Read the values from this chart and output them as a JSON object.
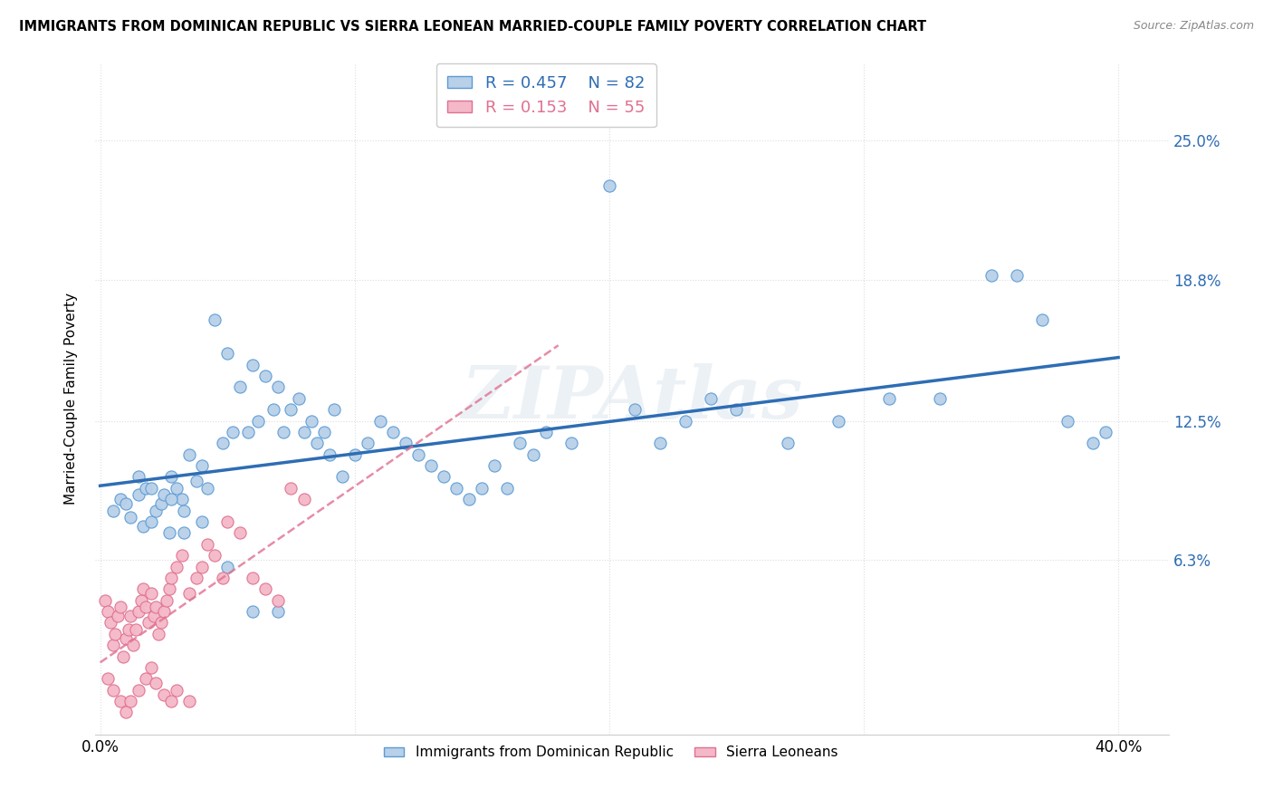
{
  "title": "IMMIGRANTS FROM DOMINICAN REPUBLIC VS SIERRA LEONEAN MARRIED-COUPLE FAMILY POVERTY CORRELATION CHART",
  "source": "Source: ZipAtlas.com",
  "ylabel": "Married-Couple Family Poverty",
  "ytick_vals": [
    0.063,
    0.125,
    0.188,
    0.25
  ],
  "ytick_labels": [
    "6.3%",
    "12.5%",
    "18.8%",
    "25.0%"
  ],
  "xtick_positions": [
    0.0,
    0.1,
    0.2,
    0.3,
    0.4
  ],
  "xlim": [
    -0.002,
    0.42
  ],
  "ylim": [
    -0.015,
    0.285
  ],
  "legend1_R": "0.457",
  "legend1_N": "82",
  "legend2_R": "0.153",
  "legend2_N": "55",
  "blue_fill": "#b8d0e8",
  "blue_edge": "#5b9bd5",
  "blue_line": "#2e6db4",
  "pink_fill": "#f4b8c8",
  "pink_edge": "#e07090",
  "pink_line": "#e07090",
  "watermark": "ZIPAtlas",
  "blue_x": [
    0.005,
    0.008,
    0.01,
    0.012,
    0.015,
    0.017,
    0.018,
    0.02,
    0.022,
    0.024,
    0.025,
    0.027,
    0.028,
    0.03,
    0.032,
    0.033,
    0.035,
    0.038,
    0.04,
    0.042,
    0.045,
    0.048,
    0.05,
    0.052,
    0.055,
    0.058,
    0.06,
    0.062,
    0.065,
    0.068,
    0.07,
    0.072,
    0.075,
    0.078,
    0.08,
    0.083,
    0.085,
    0.088,
    0.09,
    0.092,
    0.095,
    0.1,
    0.105,
    0.11,
    0.115,
    0.12,
    0.125,
    0.13,
    0.135,
    0.14,
    0.145,
    0.15,
    0.155,
    0.16,
    0.165,
    0.17,
    0.175,
    0.185,
    0.2,
    0.21,
    0.22,
    0.23,
    0.24,
    0.25,
    0.27,
    0.29,
    0.31,
    0.33,
    0.35,
    0.36,
    0.37,
    0.38,
    0.39,
    0.395,
    0.015,
    0.02,
    0.028,
    0.033,
    0.04,
    0.05,
    0.06,
    0.07
  ],
  "blue_y": [
    0.085,
    0.09,
    0.088,
    0.082,
    0.092,
    0.078,
    0.095,
    0.08,
    0.085,
    0.088,
    0.092,
    0.075,
    0.1,
    0.095,
    0.09,
    0.085,
    0.11,
    0.098,
    0.105,
    0.095,
    0.17,
    0.115,
    0.155,
    0.12,
    0.14,
    0.12,
    0.15,
    0.125,
    0.145,
    0.13,
    0.14,
    0.12,
    0.13,
    0.135,
    0.12,
    0.125,
    0.115,
    0.12,
    0.11,
    0.13,
    0.1,
    0.11,
    0.115,
    0.125,
    0.12,
    0.115,
    0.11,
    0.105,
    0.1,
    0.095,
    0.09,
    0.095,
    0.105,
    0.095,
    0.115,
    0.11,
    0.12,
    0.115,
    0.23,
    0.13,
    0.115,
    0.125,
    0.135,
    0.13,
    0.115,
    0.125,
    0.135,
    0.135,
    0.19,
    0.19,
    0.17,
    0.125,
    0.115,
    0.12,
    0.1,
    0.095,
    0.09,
    0.075,
    0.08,
    0.06,
    0.04,
    0.04
  ],
  "pink_x": [
    0.002,
    0.003,
    0.004,
    0.005,
    0.006,
    0.007,
    0.008,
    0.009,
    0.01,
    0.011,
    0.012,
    0.013,
    0.014,
    0.015,
    0.016,
    0.017,
    0.018,
    0.019,
    0.02,
    0.021,
    0.022,
    0.023,
    0.024,
    0.025,
    0.026,
    0.027,
    0.028,
    0.03,
    0.032,
    0.035,
    0.038,
    0.04,
    0.042,
    0.045,
    0.048,
    0.05,
    0.055,
    0.06,
    0.065,
    0.07,
    0.075,
    0.08,
    0.003,
    0.005,
    0.008,
    0.01,
    0.012,
    0.015,
    0.018,
    0.02,
    0.022,
    0.025,
    0.028,
    0.03,
    0.035
  ],
  "pink_y": [
    0.045,
    0.04,
    0.035,
    0.025,
    0.03,
    0.038,
    0.042,
    0.02,
    0.028,
    0.032,
    0.038,
    0.025,
    0.032,
    0.04,
    0.045,
    0.05,
    0.042,
    0.035,
    0.048,
    0.038,
    0.042,
    0.03,
    0.035,
    0.04,
    0.045,
    0.05,
    0.055,
    0.06,
    0.065,
    0.048,
    0.055,
    0.06,
    0.07,
    0.065,
    0.055,
    0.08,
    0.075,
    0.055,
    0.05,
    0.045,
    0.095,
    0.09,
    0.01,
    0.005,
    0.0,
    -0.005,
    0.0,
    0.005,
    0.01,
    0.015,
    0.008,
    0.003,
    0.0,
    0.005,
    0.0
  ]
}
